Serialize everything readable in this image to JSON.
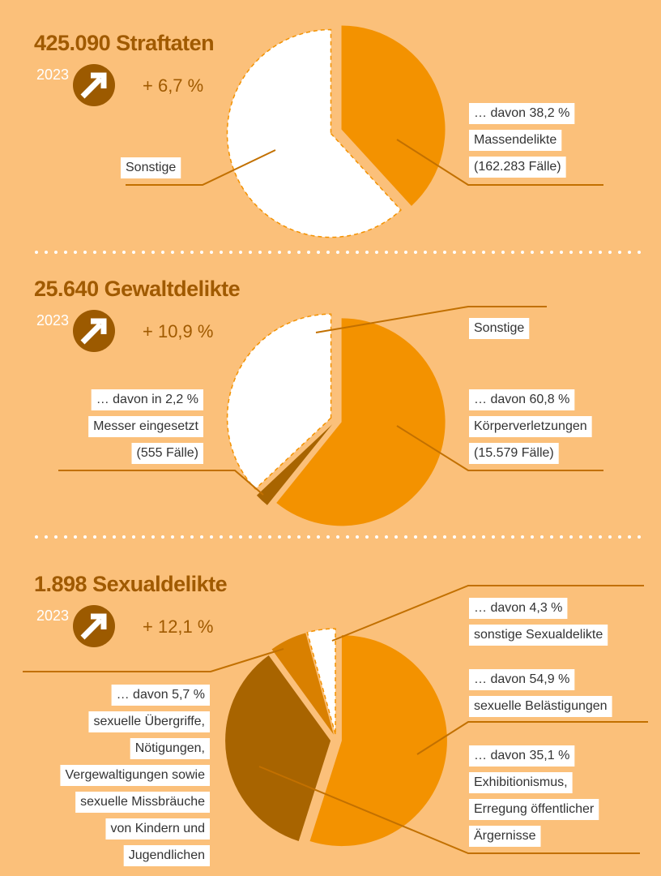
{
  "chart_data": [
    {
      "type": "pie",
      "title": "425.090 Straftaten",
      "subtitle": "2023",
      "change": "+ 6,7 %",
      "values": [
        38.2,
        61.8
      ],
      "colors": [
        "#f39200",
        "#ffffff"
      ],
      "labels": [
        [
          "… davon 38,2 %",
          "Massendelikte",
          "(162.283 Fälle)"
        ],
        [
          "Sonstige"
        ]
      ]
    },
    {
      "type": "pie",
      "title": "25.640 Gewaltdelikte",
      "subtitle": "2023",
      "change": "+ 10,9 %",
      "values": [
        60.8,
        2.2,
        37.0
      ],
      "colors": [
        "#f39200",
        "#a86400",
        "#ffffff"
      ],
      "labels": [
        [
          "… davon 60,8 %",
          "Körperverletzungen",
          "(15.579 Fälle)"
        ],
        [
          "… davon in 2,2 %",
          "Messer eingesetzt",
          "(555 Fälle)"
        ],
        [
          "Sonstige"
        ]
      ]
    },
    {
      "type": "pie",
      "title": "1.898 Sexualdelikte",
      "subtitle": "2023",
      "change": "+ 12,1 %",
      "values": [
        54.9,
        35.1,
        5.7,
        4.3
      ],
      "colors": [
        "#f39200",
        "#a86400",
        "#d98000",
        "#ffffff"
      ],
      "labels": [
        [
          "… davon 54,9 %",
          "sexuelle Belästigungen"
        ],
        [
          "… davon 35,1 %",
          "Exhibitionismus,",
          "Erregung öffentlicher",
          "Ärgernisse"
        ],
        [
          "… davon 5,7 %",
          "sexuelle Übergriffe,",
          "Nötigungen,",
          "Vergewaltigungen sowie",
          "sexuelle Missbräuche",
          "von Kindern und",
          "Jugendlichen"
        ],
        [
          "… davon 4,3 %",
          "sonstige Sexualdelikte"
        ]
      ]
    }
  ]
}
